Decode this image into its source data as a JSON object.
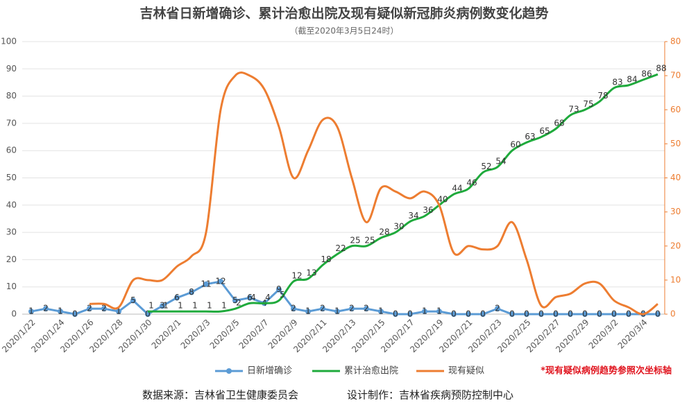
{
  "chart_data": {
    "type": "line",
    "title": "吉林省日新增确诊、累计治愈出院及现有疑似新冠肺炎病例数变化趋势",
    "subtitle": "（截至2020年3月5日24时）",
    "categories": [
      "2020/1/22",
      null,
      "2020/1/24",
      null,
      "2020/1/26",
      null,
      "2020/1/28",
      null,
      "2020/1/30",
      null,
      "2020/2/1",
      null,
      "2020/2/3",
      null,
      "2020/2/5",
      null,
      "2020/2/7",
      null,
      "2020/2/9",
      null,
      "2020/2/11",
      null,
      "2020/2/13",
      null,
      "2020/2/15",
      null,
      "2020/2/17",
      null,
      "2020/2/19",
      null,
      "2020/2/21",
      null,
      "2020/2/23",
      null,
      "2020/2/25",
      null,
      "2020/2/27",
      null,
      "2020/2/29",
      null,
      "2020/3/2",
      null,
      "2020/3/4",
      null
    ],
    "series": [
      {
        "name": "日新增确诊",
        "color": "#5b9bd5",
        "values": [
          1,
          2,
          1,
          0,
          2,
          2,
          1,
          5,
          0,
          3,
          6,
          8,
          11,
          12,
          5,
          6,
          4,
          9,
          2,
          1,
          2,
          1,
          2,
          2,
          1,
          0,
          0,
          1,
          1,
          0,
          0,
          0,
          2,
          0,
          0,
          0,
          0,
          0,
          0,
          0,
          0,
          0,
          0,
          0
        ]
      },
      {
        "name": "累计治愈出院",
        "color": "#1faa3c",
        "values": [
          null,
          null,
          null,
          null,
          null,
          null,
          null,
          null,
          1,
          1,
          1,
          1,
          1,
          1,
          2,
          4,
          4,
          5,
          12,
          13,
          18,
          22,
          25,
          25,
          28,
          30,
          34,
          36,
          40,
          44,
          46,
          52,
          54,
          60,
          63,
          65,
          68,
          73,
          75,
          78,
          83,
          84,
          86,
          88
        ]
      },
      {
        "name": "现有疑似",
        "color": "#ed7d31",
        "axis": "y2",
        "values": [
          null,
          null,
          null,
          null,
          3,
          3,
          2,
          10,
          10,
          10,
          14,
          17,
          24,
          60,
          70,
          70,
          66,
          55,
          40,
          48,
          57,
          55,
          40,
          27,
          37,
          36,
          34,
          36,
          32,
          18,
          20,
          19,
          20,
          27,
          16,
          2.5,
          5,
          6,
          9,
          9,
          4,
          2,
          0,
          3
        ]
      }
    ],
    "ylim": [
      0,
      100
    ],
    "yticks": [
      0,
      10,
      20,
      30,
      40,
      50,
      60,
      70,
      80,
      90,
      100
    ],
    "y2lim": [
      0,
      80
    ],
    "y2ticks": [
      0,
      10,
      20,
      30,
      40,
      50,
      60,
      70,
      80
    ],
    "grid": true,
    "annotation": "*现有疑似病例趋势参照次坐标轴",
    "source": "数据来源：吉林省卫生健康委员会",
    "designer": "设计制作：吉林省疾病预防控制中心"
  }
}
